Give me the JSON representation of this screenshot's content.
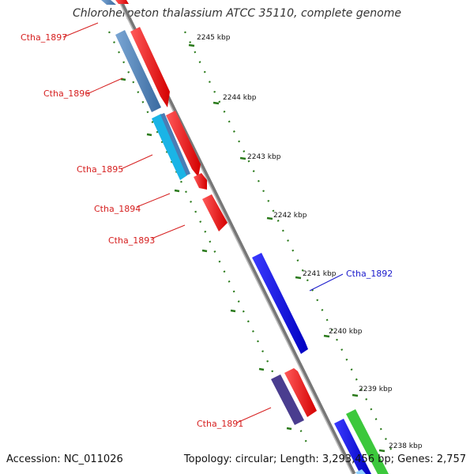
{
  "title": "Chloroherpeton thalassium ATCC 35110, complete genome",
  "footer": {
    "accession": "Accession: NC_011026",
    "topology": "Topology: circular; Length: 3,293,456 bp; Genes: 2,757"
  },
  "ticks": [
    "2245 kbp",
    "2244 kbp",
    "2243 kbp",
    "2242 kbp",
    "2241 kbp",
    "2240 kbp",
    "2239 kbp",
    "2238 kbp"
  ],
  "gene_labels": [
    "Ctha_1897",
    "Ctha_1896",
    "Ctha_1895",
    "Ctha_1894",
    "Ctha_1893",
    "Ctha_1892",
    "Ctha_1891"
  ],
  "colors": {
    "forward_gene": "#ff0000",
    "reverse_gene": "#4a7db5",
    "highlight_gene": "#0000ff",
    "cyan_gene": "#1ab4e6",
    "purple_gene": "#4a3d8f",
    "green_gene": "#3cc83c",
    "label_red": "#d62020",
    "label_blue": "#1a1acc",
    "tick_green": "#2a7a1a"
  }
}
